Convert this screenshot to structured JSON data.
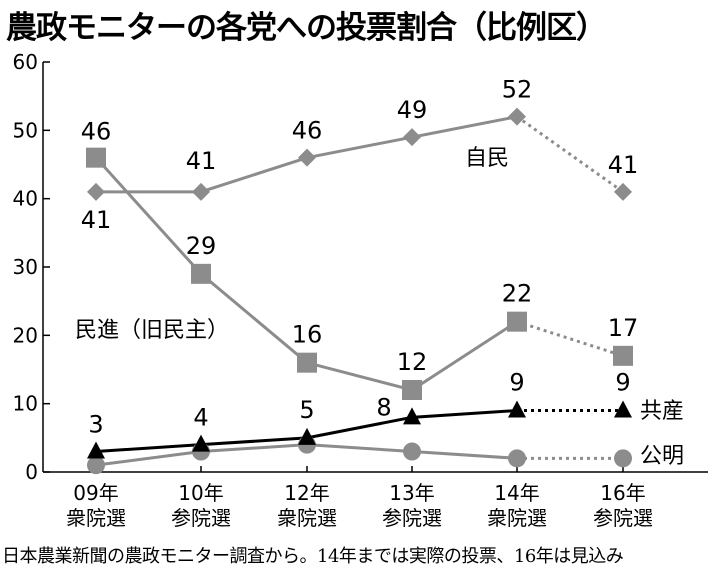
{
  "title": "農政モニターの各党への投票割合（比例区）",
  "source_note": "日本農業新聞の農政モニター調査から。14年までは実際の投票、16年は見込み",
  "colors": {
    "gray_series": "#8c8c8c",
    "black_series": "#000000"
  },
  "chart_data": {
    "type": "line",
    "title": "農政モニターの各党への投票割合（比例区）",
    "categories": [
      {
        "year": "09年",
        "election": "衆院選"
      },
      {
        "year": "10年",
        "election": "参院選"
      },
      {
        "year": "12年",
        "election": "衆院選"
      },
      {
        "year": "13年",
        "election": "参院選"
      },
      {
        "year": "14年",
        "election": "衆院選"
      },
      {
        "year": "16年",
        "election": "参院選"
      }
    ],
    "ylim": [
      0,
      60
    ],
    "yticks": [
      "0",
      "10",
      "20",
      "30",
      "40",
      "50",
      "60"
    ],
    "dashed_segment": "14年→16年 (見込み)",
    "series": [
      {
        "name": "自民",
        "marker": "diamond",
        "color": "#8c8c8c",
        "values": [
          41,
          41,
          46,
          49,
          52,
          41
        ],
        "labels": [
          "41",
          "41",
          "46",
          "49",
          "52",
          "41"
        ]
      },
      {
        "name": "民進（旧民主）",
        "marker": "square",
        "color": "#8c8c8c",
        "values": [
          46,
          29,
          16,
          12,
          22,
          17
        ],
        "labels": [
          "46",
          "29",
          "16",
          "12",
          "22",
          "17"
        ]
      },
      {
        "name": "共産",
        "marker": "triangle",
        "color": "#000000",
        "values": [
          3,
          4,
          5,
          8,
          9,
          9
        ],
        "labels": [
          "3",
          "4",
          "5",
          "8",
          "9",
          "9"
        ]
      },
      {
        "name": "公明",
        "marker": "circle",
        "color": "#8c8c8c",
        "values": [
          1,
          3,
          4,
          3,
          2,
          2
        ],
        "labels": []
      }
    ]
  }
}
